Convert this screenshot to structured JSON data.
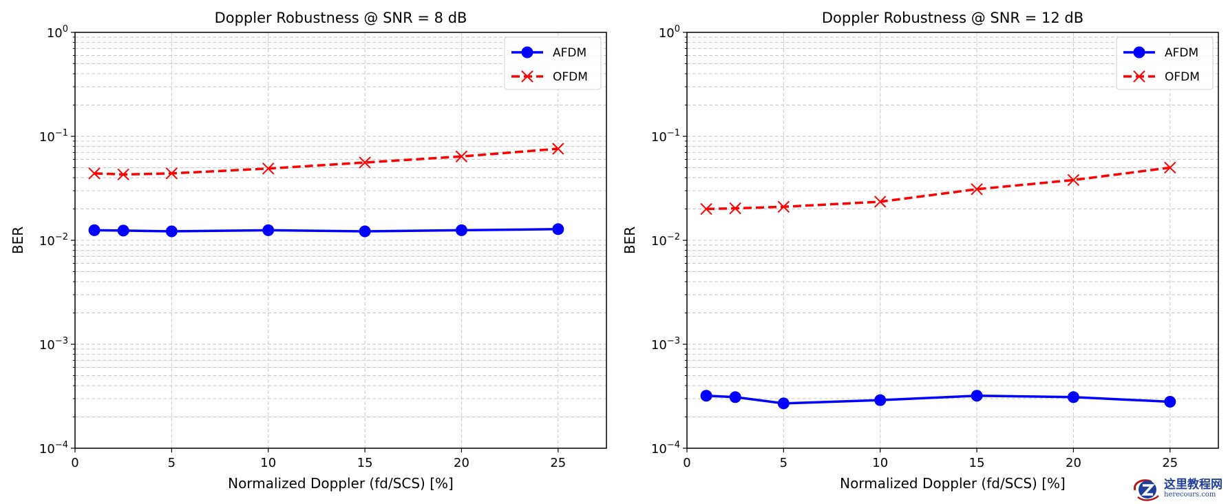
{
  "chart_data": [
    {
      "type": "line",
      "title": "Doppler Robustness @ SNR = 8 dB",
      "xlabel": "Normalized Doppler (fd/SCS) [%]",
      "ylabel": "BER",
      "xlim": [
        0,
        27.5
      ],
      "ylim": [
        0.0001,
        1
      ],
      "yscale": "log",
      "grid": true,
      "legend": "top-right",
      "xticks": [
        0,
        5,
        10,
        15,
        20,
        25
      ],
      "yticks": [
        0.0001,
        0.001,
        0.01,
        0.1,
        1
      ],
      "ytick_labels": [
        [
          "10",
          "−4"
        ],
        [
          "10",
          "−3"
        ],
        [
          "10",
          "−2"
        ],
        [
          "10",
          "−1"
        ],
        [
          "10",
          "0"
        ]
      ],
      "x": [
        1,
        2.5,
        5,
        10,
        15,
        20,
        25
      ],
      "series": [
        {
          "name": "AFDM",
          "color": "#0000ff",
          "style": "solid",
          "marker": "circle",
          "values": [
            0.0125,
            0.0124,
            0.0122,
            0.0125,
            0.0122,
            0.0125,
            0.0128
          ]
        },
        {
          "name": "OFDM",
          "color": "#ff0000",
          "style": "dashed",
          "marker": "x",
          "values": [
            0.044,
            0.043,
            0.044,
            0.049,
            0.056,
            0.064,
            0.076
          ]
        }
      ]
    },
    {
      "type": "line",
      "title": "Doppler Robustness @ SNR = 12 dB",
      "xlabel": "Normalized Doppler (fd/SCS) [%]",
      "ylabel": "BER",
      "xlim": [
        0,
        27.5
      ],
      "ylim": [
        0.0001,
        1
      ],
      "yscale": "log",
      "grid": true,
      "legend": "top-right",
      "xticks": [
        0,
        5,
        10,
        15,
        20,
        25
      ],
      "yticks": [
        0.0001,
        0.001,
        0.01,
        0.1,
        1
      ],
      "ytick_labels": [
        [
          "10",
          "−4"
        ],
        [
          "10",
          "−3"
        ],
        [
          "10",
          "−2"
        ],
        [
          "10",
          "−1"
        ],
        [
          "10",
          "0"
        ]
      ],
      "x": [
        1,
        2.5,
        5,
        10,
        15,
        20,
        25
      ],
      "series": [
        {
          "name": "AFDM",
          "color": "#0000ff",
          "style": "solid",
          "marker": "circle",
          "values": [
            0.00032,
            0.00031,
            0.00027,
            0.00029,
            0.00032,
            0.00031,
            0.00028
          ]
        },
        {
          "name": "OFDM",
          "color": "#ff0000",
          "style": "dashed",
          "marker": "x",
          "values": [
            0.02,
            0.0203,
            0.021,
            0.0235,
            0.031,
            0.038,
            0.05
          ]
        }
      ]
    }
  ],
  "watermark": {
    "cn": "这里教程网",
    "en": "herecours.com"
  }
}
